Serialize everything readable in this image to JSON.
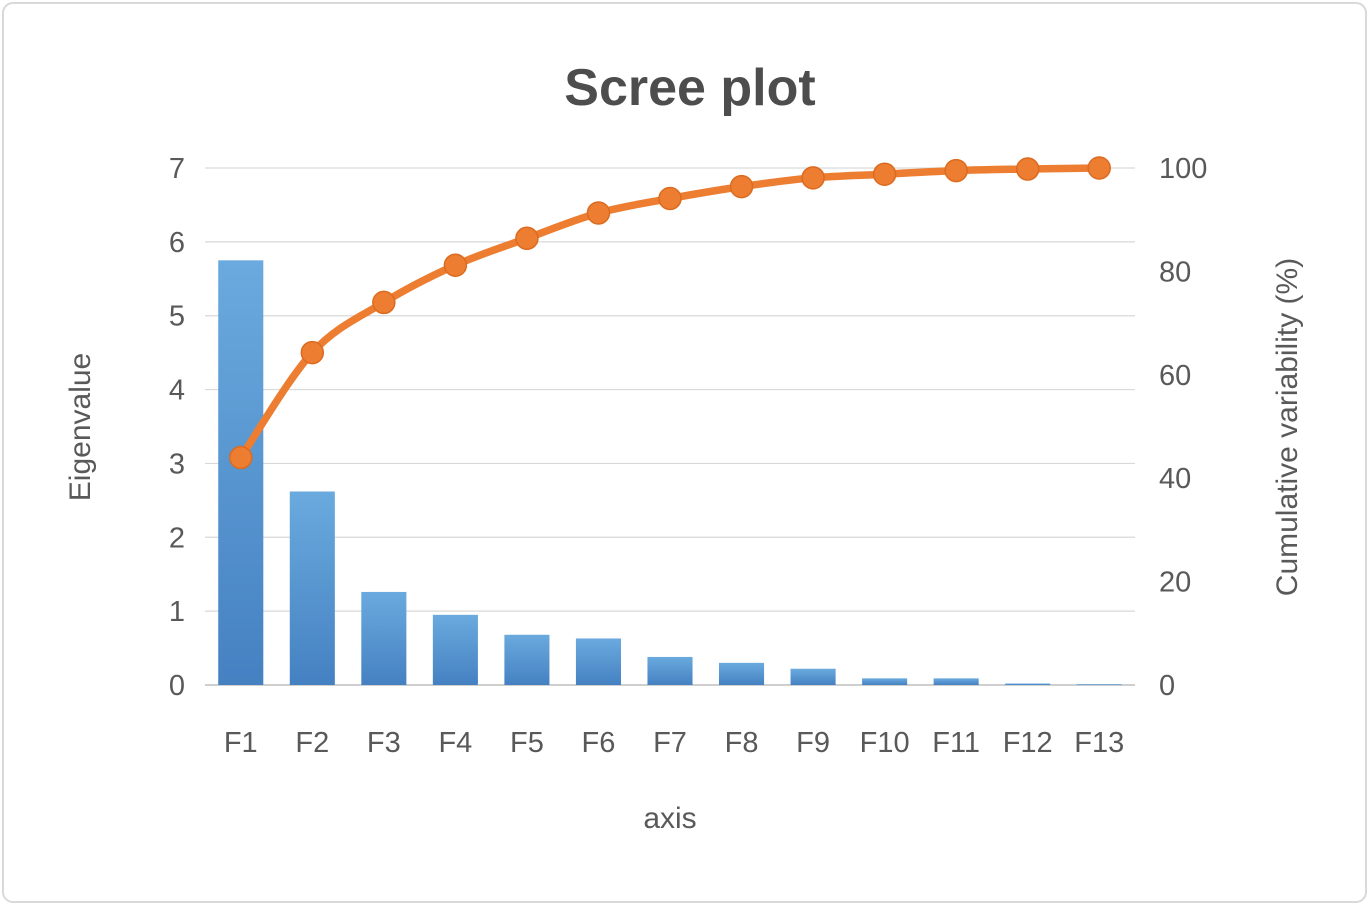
{
  "chart_data": {
    "type": "bar",
    "subtype": "pareto-bar-plus-cumulative-line-dual-axis",
    "title": "Scree plot",
    "xlabel": "axis",
    "categories": [
      "F1",
      "F2",
      "F3",
      "F4",
      "F5",
      "F6",
      "F7",
      "F8",
      "F9",
      "F10",
      "F11",
      "F12",
      "F13"
    ],
    "series": [
      {
        "name": "Eigenvalue",
        "type": "bar",
        "axis": "left",
        "values": [
          5.75,
          2.62,
          1.26,
          0.95,
          0.68,
          0.63,
          0.38,
          0.3,
          0.22,
          0.09,
          0.09,
          0.02,
          0.01
        ]
      },
      {
        "name": "Cumulative variability (%)",
        "type": "line",
        "axis": "right",
        "values": [
          44,
          64.3,
          74,
          81.2,
          86.4,
          91.3,
          94.1,
          96.4,
          98.1,
          98.8,
          99.5,
          99.8,
          100
        ]
      }
    ],
    "left_axis": {
      "label": "Eigenvalue",
      "min": 0,
      "max": 7,
      "ticks": [
        0,
        1,
        2,
        3,
        4,
        5,
        6,
        7
      ]
    },
    "right_axis": {
      "label": "Cumulative variability (%)",
      "min": 0,
      "max": 100,
      "ticks": [
        0,
        20,
        40,
        60,
        80,
        100
      ]
    },
    "grid": true,
    "legend": "none",
    "colors": {
      "bar": "#5B9BD5",
      "bar_top": "#6aaade",
      "bar_bottom": "#4581c2",
      "line": "#ED7D31",
      "marker_stroke": "#db6b20",
      "text": "#595959",
      "title": "#4d4d4d",
      "grid": "#d9d9d9",
      "axis_line": "#bfbfbf",
      "frame_border": "#d9d9d9",
      "background": "#ffffff"
    }
  }
}
